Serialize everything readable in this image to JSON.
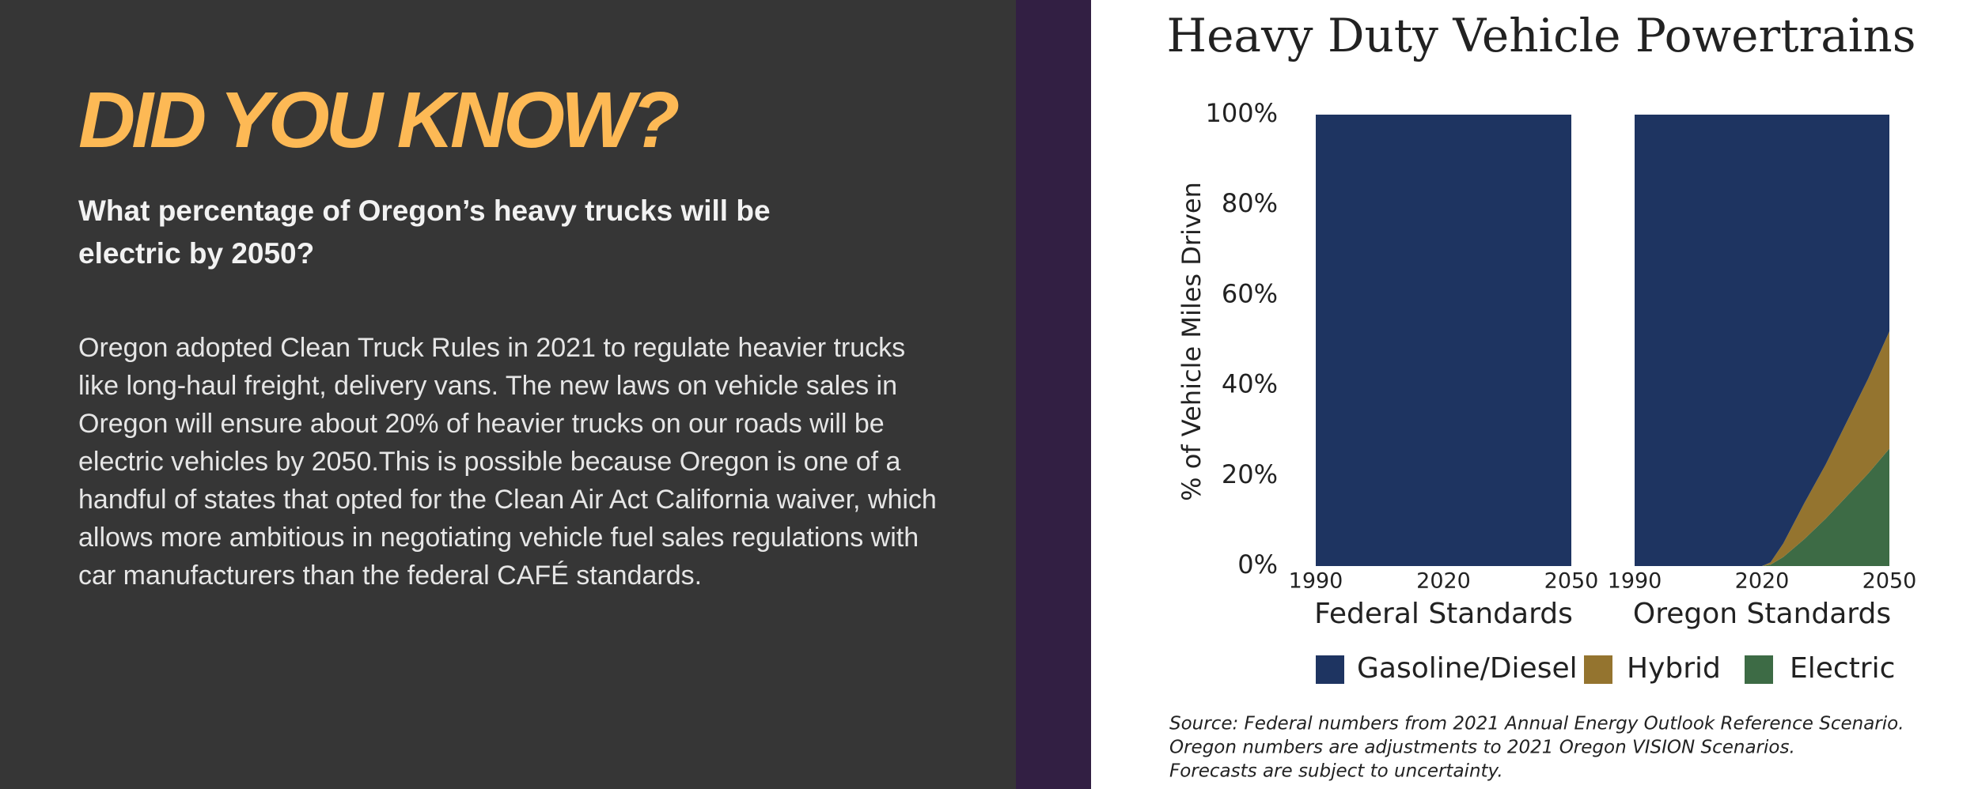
{
  "header": {
    "title": "DID YOU KNOW?",
    "question": "What percentage of Oregon’s heavy trucks will be electric by 2050?",
    "body": "Oregon adopted Clean Truck Rules in 2021 to regulate heavier trucks like long-haul freight, delivery vans. The new laws on vehicle sales in Oregon will ensure about 20% of heavier trucks on our roads will be electric vehicles by 2050.This is possible because Oregon is one of a handful of states that opted for the Clean Air Act California waiver, which allows more ambitious in negotiating vehicle fuel sales regulations with car manufacturers than the federal CAFÉ standards."
  },
  "chart_data": {
    "type": "area",
    "stacked": true,
    "title": "Heavy Duty Vehicle Powertrains",
    "y_label": "% of Vehicle Miles Driven",
    "ylim": [
      0,
      100
    ],
    "yticks": [
      {
        "value": 0,
        "label": "0%"
      },
      {
        "value": 20,
        "label": "20%"
      },
      {
        "value": 40,
        "label": "40%"
      },
      {
        "value": 60,
        "label": "60%"
      },
      {
        "value": 80,
        "label": "80%"
      },
      {
        "value": 100,
        "label": "100%"
      }
    ],
    "panels": [
      {
        "x_label": "Federal Standards",
        "xlim": [
          1990,
          2050
        ],
        "xticks": [
          1990,
          2020,
          2050
        ],
        "x": [
          1990,
          2020,
          2050
        ],
        "series": [
          {
            "name": "Gasoline/Diesel",
            "color": "#1e3461",
            "values": [
              100,
              100,
              100
            ]
          },
          {
            "name": "Hybrid",
            "color": "#94742f",
            "values": [
              0,
              0,
              0
            ]
          },
          {
            "name": "Electric",
            "color": "#3d6b45",
            "values": [
              0,
              0,
              0
            ]
          }
        ]
      },
      {
        "x_label": "Oregon Standards",
        "xlim": [
          1990,
          2050
        ],
        "xticks": [
          1990,
          2020,
          2050
        ],
        "x": [
          1990,
          2020,
          2022,
          2025,
          2030,
          2035,
          2040,
          2045,
          2050
        ],
        "series": [
          {
            "name": "Gasoline/Diesel",
            "color": "#1e3461",
            "values": [
              100,
              100,
              99.2,
              95,
              86,
              77.5,
              68,
              58.5,
              48
            ]
          },
          {
            "name": "Hybrid",
            "color": "#94742f",
            "values": [
              0,
              0,
              0.5,
              3,
              8,
              12,
              16.5,
              21,
              26
            ]
          },
          {
            "name": "Electric",
            "color": "#3d6b45",
            "values": [
              0,
              0,
              0.3,
              2,
              6,
              10.5,
              15.5,
              20.5,
              26
            ]
          }
        ]
      }
    ],
    "source": [
      "Source:  Federal numbers from 2021 Annual Energy Outlook Reference Scenario.",
      "Oregon numbers are adjustments to 2021 Oregon VISION Scenarios.",
      "Forecasts are subject to uncertainty."
    ]
  }
}
